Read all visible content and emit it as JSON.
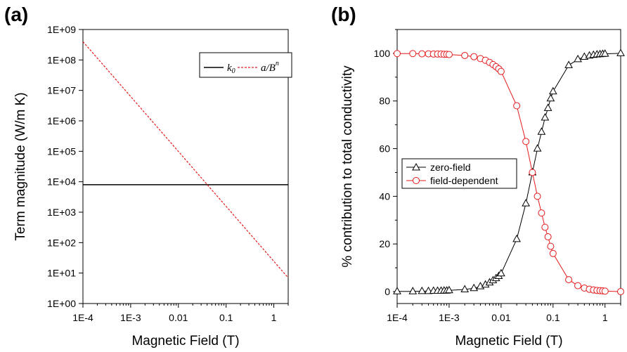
{
  "chart_data": [
    {
      "panel_label": "(a)",
      "type": "line",
      "xlabel": "Magnetic Field (T)",
      "ylabel": "Term magnitude (W/m K)",
      "x_scale": "log",
      "y_scale": "log",
      "xlim": [
        0.0001,
        2
      ],
      "ylim": [
        1,
        1000000000
      ],
      "x_ticks": [
        {
          "value": 0.0001,
          "label": "1E-4"
        },
        {
          "value": 0.001,
          "label": "1E-3"
        },
        {
          "value": 0.01,
          "label": "0.01"
        },
        {
          "value": 0.1,
          "label": "0.1"
        },
        {
          "value": 1,
          "label": "1"
        }
      ],
      "y_ticks": [
        {
          "value": 1,
          "label": "1E+00"
        },
        {
          "value": 10,
          "label": "1E+01"
        },
        {
          "value": 100,
          "label": "1E+02"
        },
        {
          "value": 1000,
          "label": "1E+03"
        },
        {
          "value": 10000,
          "label": "1E+04"
        },
        {
          "value": 100000,
          "label": "1E+05"
        },
        {
          "value": 1000000,
          "label": "1E+06"
        },
        {
          "value": 10000000,
          "label": "1E+07"
        },
        {
          "value": 100000000,
          "label": "1E+08"
        },
        {
          "value": 1000000000,
          "label": "1E+09"
        }
      ],
      "series": [
        {
          "name": "k0",
          "color": "#000000",
          "dash": "solid",
          "x": [
            0.0001,
            2
          ],
          "y": [
            8000,
            8000
          ]
        },
        {
          "name": "a/B^n",
          "color": "#e41a1c",
          "dash": "dashed",
          "x": [
            0.0001,
            2
          ],
          "y": [
            400000000,
            7
          ]
        }
      ],
      "legend_placement": "top-right",
      "grid": false
    },
    {
      "panel_label": "(b)",
      "type": "line",
      "xlabel": "Magnetic Field (T)",
      "ylabel": "% contribution to total conductivity",
      "x_scale": "log",
      "y_scale": "linear",
      "xlim": [
        0.0001,
        2
      ],
      "ylim": [
        -5,
        110
      ],
      "x_ticks": [
        {
          "value": 0.0001,
          "label": "1E-4"
        },
        {
          "value": 0.001,
          "label": "1E-3"
        },
        {
          "value": 0.01,
          "label": "0.01"
        },
        {
          "value": 0.1,
          "label": "0.1"
        },
        {
          "value": 1,
          "label": "1"
        }
      ],
      "y_ticks": [
        {
          "value": 0,
          "label": "0"
        },
        {
          "value": 20,
          "label": "20"
        },
        {
          "value": 40,
          "label": "40"
        },
        {
          "value": 60,
          "label": "60"
        },
        {
          "value": 80,
          "label": "80"
        },
        {
          "value": 100,
          "label": "100"
        }
      ],
      "x": [
        0.0001,
        0.0002,
        0.0003,
        0.0004,
        0.0005,
        0.0006,
        0.0007,
        0.0008,
        0.0009,
        0.001,
        0.002,
        0.003,
        0.004,
        0.005,
        0.006,
        0.007,
        0.008,
        0.009,
        0.01,
        0.02,
        0.03,
        0.04,
        0.05,
        0.06,
        0.07,
        0.08,
        0.09,
        0.1,
        0.2,
        0.3,
        0.4,
        0.5,
        0.6,
        0.7,
        0.8,
        0.9,
        1,
        2
      ],
      "series": [
        {
          "name": "zero-field",
          "color": "#000000",
          "marker": "triangle",
          "values": [
            0.1,
            0.1,
            0.2,
            0.2,
            0.3,
            0.3,
            0.3,
            0.4,
            0.4,
            0.5,
            0.9,
            1.4,
            2.2,
            2.9,
            3.8,
            4.7,
            5.6,
            6.5,
            7.6,
            22,
            37,
            50,
            60,
            67,
            73,
            77,
            81,
            84,
            95,
            97.5,
            98.5,
            99,
            99.3,
            99.5,
            99.6,
            99.7,
            99.8,
            100
          ]
        },
        {
          "name": "field-dependent",
          "color": "#e41a1c",
          "marker": "circle",
          "values": [
            99.9,
            99.9,
            99.8,
            99.8,
            99.7,
            99.7,
            99.7,
            99.6,
            99.6,
            99.5,
            99.1,
            98.6,
            97.8,
            97.1,
            96.2,
            95.3,
            94.4,
            93.5,
            92.4,
            78,
            63,
            50,
            40,
            33,
            27,
            23,
            19,
            16,
            5,
            2.5,
            1.5,
            1,
            0.7,
            0.5,
            0.4,
            0.3,
            0.2,
            0
          ]
        }
      ],
      "legend_placement": "center-left",
      "grid": false
    }
  ]
}
